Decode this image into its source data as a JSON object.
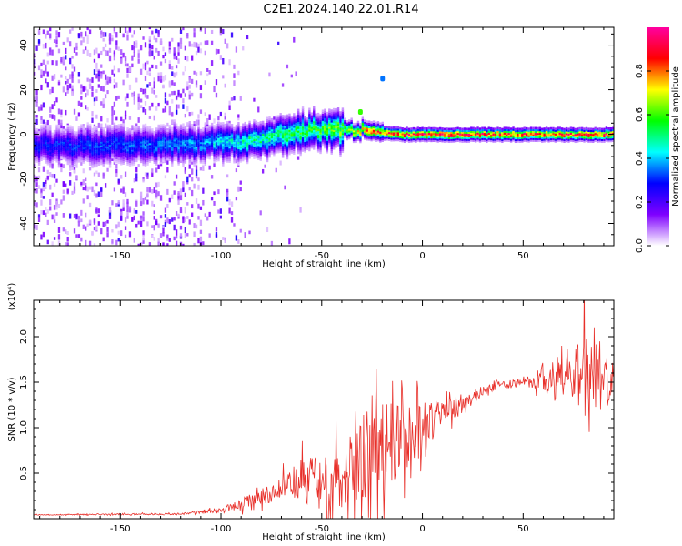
{
  "title": "C2E1.2024.140.22.01.R14",
  "chart_data": [
    {
      "type": "heatmap",
      "xlabel": "Height of straight line (km)",
      "ylabel": "Frequency (Hz)",
      "xlim": [
        -193,
        95
      ],
      "ylim": [
        -50,
        48
      ],
      "x_ticks": [
        -150,
        -100,
        -50,
        0,
        50
      ],
      "y_ticks": [
        -40,
        -20,
        0,
        20,
        40
      ],
      "colorbar": {
        "label": "Normalized spectral amplitude",
        "range": [
          0,
          1
        ],
        "ticks": [
          "0.0",
          "0.2",
          "0.4",
          "0.6",
          "0.8"
        ],
        "colors": [
          "#ffffff",
          "#7f00ff",
          "#0000ff",
          "#00ffff",
          "#00ff00",
          "#ffff00",
          "#ff0000",
          "#ff00a0"
        ]
      },
      "ridge": {
        "description_points_x": [
          -193,
          -150,
          -110,
          -90,
          -70,
          -50,
          -40,
          -30,
          -20,
          -10,
          0,
          50,
          95
        ],
        "center_freq_hz": [
          -5,
          -5,
          -4,
          -3,
          0,
          2,
          2,
          2,
          1,
          0,
          0,
          0,
          0
        ],
        "peak_amplitude": [
          0.3,
          0.35,
          0.4,
          0.5,
          0.55,
          0.6,
          0.65,
          0.8,
          0.85,
          0.9,
          0.95,
          0.9,
          0.9
        ]
      },
      "grid": false
    },
    {
      "type": "line",
      "xlabel": "Height of straight line (km)",
      "ylabel": "SNR (10 * v/v)",
      "y_multiplier": "(x10⁴)",
      "xlim": [
        -193,
        95
      ],
      "ylim": [
        0,
        24000
      ],
      "x_ticks": [
        -150,
        -100,
        -50,
        0,
        50
      ],
      "y_ticks": [
        5000,
        10000,
        15000,
        20000
      ],
      "y_tick_labels": [
        "0.5",
        "1.0",
        "1.5",
        "2.0"
      ],
      "line_color": "#e8302a",
      "series": [
        {
          "x": [
            -193,
            -150,
            -120,
            -100,
            -90,
            -80,
            -70,
            -60,
            -50,
            -40,
            -30,
            -20,
            -10,
            0,
            10,
            20,
            30,
            40,
            50,
            60,
            70,
            80,
            90,
            95
          ],
          "y": [
            400,
            500,
            500,
            1000,
            1500,
            2500,
            3500,
            4000,
            4000,
            5000,
            7000,
            8000,
            9000,
            10000,
            11500,
            12500,
            14000,
            14800,
            15200,
            15000,
            15500,
            16000,
            15500,
            15000
          ],
          "spike_amplitude": [
            50,
            80,
            100,
            300,
            600,
            900,
            1500,
            2500,
            3000,
            4000,
            5000,
            5000,
            4000,
            3000,
            1500,
            800,
            500,
            400,
            500,
            1500,
            3000,
            4000,
            3500,
            2000
          ]
        }
      ],
      "grid": false
    }
  ]
}
